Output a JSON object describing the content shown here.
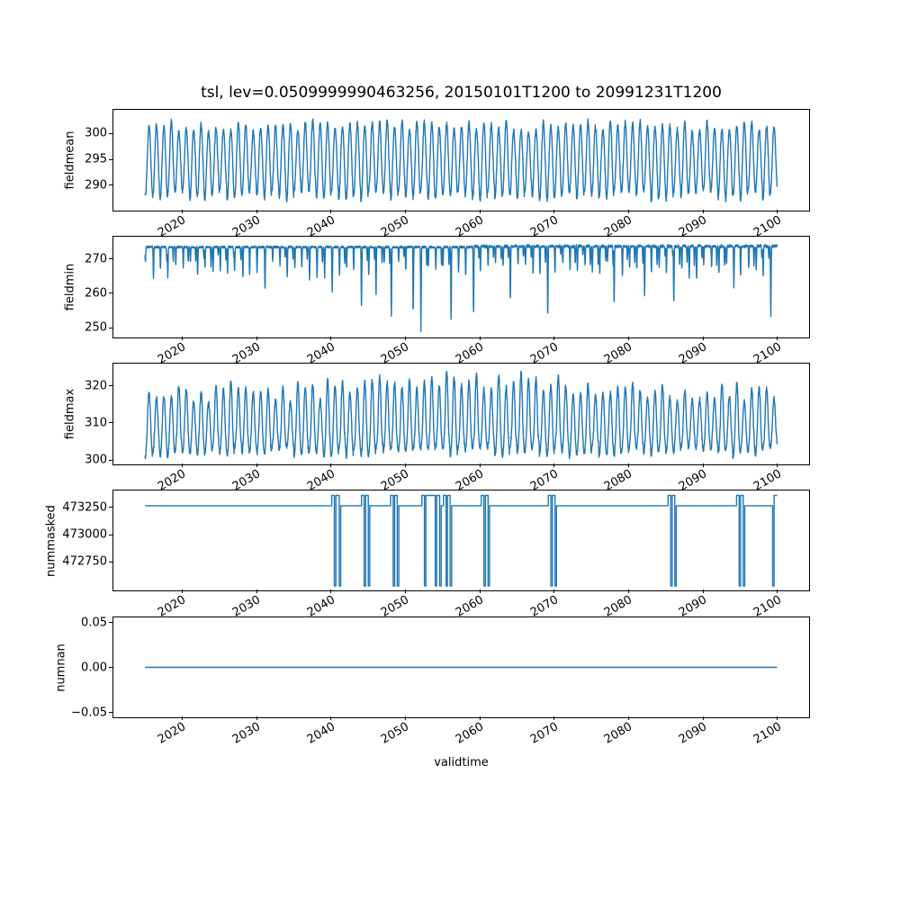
{
  "figure": {
    "title": "tsl, lev=0.0509999990463256, 20150101T1200 to 20991231T1200",
    "xlabel": "validtime",
    "background": "#ffffff",
    "line_color": "#1f77b4",
    "spine_color": "#000000",
    "t_start": 2015.0,
    "t_end": 2099.96,
    "xlim": [
      2010.75,
      2104.25
    ],
    "xticks": [
      2020,
      2030,
      2040,
      2050,
      2060,
      2070,
      2080,
      2090,
      2100
    ],
    "xtick_labels": [
      "2020",
      "2030",
      "2040",
      "2050",
      "2060",
      "2070",
      "2080",
      "2090",
      "2100"
    ]
  },
  "chart_data": [
    {
      "type": "line",
      "name": "fieldmean",
      "ylabel": "fieldmean",
      "ylim": [
        285.1,
        304.6
      ],
      "yticks": [
        290,
        295,
        300
      ],
      "ytick_labels": [
        "290",
        "295",
        "300"
      ],
      "grid": false,
      "signal": {
        "kind": "seasonal",
        "base": 294.7,
        "peak_amp": 6.8,
        "peak_jitter": 1.1,
        "trough_amp": 6.6,
        "trough_jitter": 1.0,
        "noise": 0.5,
        "points_per_year": 36,
        "seed": 11
      }
    },
    {
      "type": "line",
      "name": "fieldmin",
      "ylabel": "fieldmin",
      "ylim": [
        247.2,
        276.4
      ],
      "yticks": [
        250,
        260,
        270
      ],
      "ytick_labels": [
        "250",
        "260",
        "270"
      ],
      "grid": false,
      "signal": {
        "kind": "dips",
        "top": 273.4,
        "top_noise": 0.3,
        "top_bump_after": 2058,
        "top_bump": 0.45,
        "dip_min": 4.0,
        "dip_max": 9.5,
        "dip_width": 0.055,
        "points_per_year": 36,
        "seed": 23,
        "deep_dips": [
          [
            2022,
            265.0
          ],
          [
            2031,
            261.0
          ],
          [
            2040,
            260.0
          ],
          [
            2044,
            256.0
          ],
          [
            2046,
            259.5
          ],
          [
            2048,
            253.5
          ],
          [
            2051,
            254.5
          ],
          [
            2052,
            249.0
          ],
          [
            2056,
            252.5
          ],
          [
            2059,
            254.0
          ],
          [
            2064,
            258.0
          ],
          [
            2069,
            253.0
          ],
          [
            2078,
            257.0
          ],
          [
            2082,
            259.0
          ],
          [
            2086,
            256.5
          ],
          [
            2094,
            261.0
          ],
          [
            2099,
            253.0
          ]
        ]
      }
    },
    {
      "type": "line",
      "name": "fieldmax",
      "ylabel": "fieldmax",
      "ylim": [
        298.8,
        326.0
      ],
      "yticks": [
        300,
        310,
        320
      ],
      "ytick_labels": [
        "300",
        "310",
        "320"
      ],
      "grid": false,
      "signal": {
        "kind": "seasonal",
        "base": 308.4,
        "peak_amp": 9.8,
        "peak_jitter": 2.8,
        "trough_amp": 6.2,
        "trough_jitter": 1.4,
        "bulge_year": 2060,
        "bulge_sigma": 18,
        "bulge_amp": 3.2,
        "noise": 0.7,
        "points_per_year": 36,
        "seed": 37
      }
    },
    {
      "type": "line",
      "name": "nummasked",
      "ylabel": "nummasked",
      "ylim": [
        472490,
        473405
      ],
      "yticks": [
        472750,
        473000,
        473250
      ],
      "ytick_labels": [
        "472750",
        "473000",
        "473250"
      ],
      "grid": false,
      "signal": {
        "kind": "steps",
        "base": 473266,
        "high": 473360,
        "low": 472530,
        "events": [
          [
            2040.1,
            2041.3
          ],
          [
            2044.1,
            2045.2
          ],
          [
            2048.0,
            2049.1
          ],
          [
            2052.2,
            2054.8
          ],
          [
            2055.1,
            2056.2
          ],
          [
            2060.2,
            2061.3
          ],
          [
            2069.2,
            2070.3
          ],
          [
            2085.3,
            2086.4
          ],
          [
            2094.5,
            2095.6
          ],
          [
            2099.35,
            2099.96
          ]
        ]
      }
    },
    {
      "type": "line",
      "name": "numnan",
      "ylabel": "numnan",
      "ylim": [
        -0.0555,
        0.0555
      ],
      "yticks": [
        -0.05,
        0.0,
        0.05
      ],
      "ytick_labels": [
        "−0.05",
        "0.00",
        "0.05"
      ],
      "grid": false,
      "signal": {
        "kind": "const",
        "value": 0.0
      }
    }
  ]
}
